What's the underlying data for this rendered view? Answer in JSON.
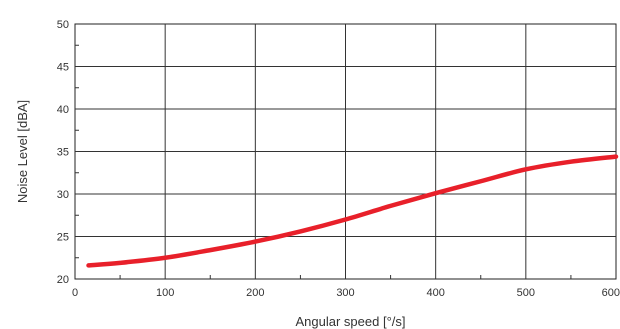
{
  "chart_data": {
    "type": "line",
    "title": "",
    "xlabel": "Angular speed [°/s]",
    "ylabel": "Noise Level [dBA]",
    "xlim": [
      0,
      600
    ],
    "ylim": [
      20,
      50
    ],
    "xticks": [
      0,
      100,
      200,
      300,
      400,
      500,
      600
    ],
    "yticks": [
      20,
      25,
      30,
      35,
      40,
      45,
      50
    ],
    "grid": true,
    "legend": "none",
    "series": [
      {
        "color": "#e8202a",
        "x": [
          15,
          50,
          100,
          150,
          200,
          250,
          300,
          350,
          400,
          450,
          500,
          550,
          600
        ],
        "y": [
          21.6,
          21.9,
          22.5,
          23.4,
          24.4,
          25.6,
          27.0,
          28.6,
          30.1,
          31.5,
          32.9,
          33.8,
          34.4
        ]
      }
    ]
  }
}
